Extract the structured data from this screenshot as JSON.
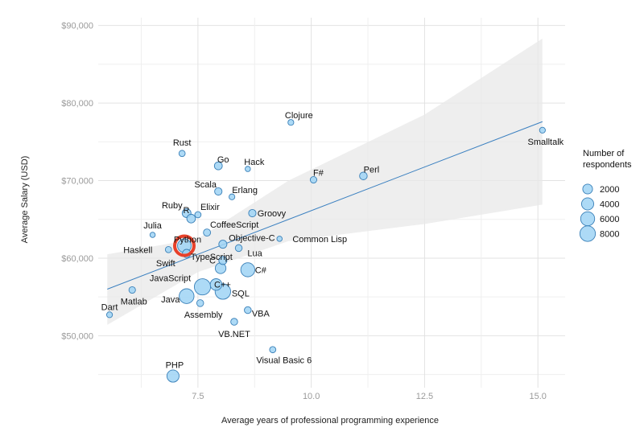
{
  "chart_data": {
    "type": "scatter",
    "xlabel": "Average years of professional programming experience",
    "ylabel": "Average Salary (USD)",
    "xlim": [
      5.3,
      15.6
    ],
    "ylim": [
      43300,
      91000
    ],
    "x_ticks": [
      7.5,
      10.0,
      12.5,
      15.0
    ],
    "x_tick_labels": [
      "7.5",
      "10.0",
      "12.5",
      "15.0"
    ],
    "y_ticks": [
      50000,
      60000,
      70000,
      80000,
      90000
    ],
    "y_tick_labels": [
      "$50,000",
      "$60,000",
      "$70,000",
      "$80,000",
      "$90,000"
    ],
    "grid": true,
    "trend_line": {
      "x": [
        5.5,
        15.1
      ],
      "y": [
        56000,
        77600
      ]
    },
    "confidence_band": {
      "upper": [
        [
          5.5,
          60500
        ],
        [
          7.5,
          62500
        ],
        [
          9.5,
          70000
        ],
        [
          12.5,
          78500
        ],
        [
          15.1,
          88300
        ]
      ],
      "lower": [
        [
          5.5,
          51400
        ],
        [
          7.5,
          58200
        ],
        [
          9.5,
          62200
        ],
        [
          12.5,
          64400
        ],
        [
          15.1,
          66900
        ]
      ]
    },
    "highlighted_point": "Python",
    "highlight_color": "#e8412a",
    "point_color": "#9fd3f5",
    "point_stroke": "#3a80b8",
    "trend_color": "#3b80c0",
    "band_color": "#e8e8e8",
    "legend": {
      "title_lines": [
        "Number of",
        "respondents"
      ],
      "position": "right",
      "entries": [
        {
          "label": "2000",
          "size": 2000
        },
        {
          "label": "4000",
          "size": 4000
        },
        {
          "label": "6000",
          "size": 6000
        },
        {
          "label": "8000",
          "size": 8000
        }
      ]
    },
    "points": [
      {
        "label": "Clojure",
        "x": 9.55,
        "y": 77500,
        "size": 200
      },
      {
        "label": "Smalltalk",
        "x": 15.1,
        "y": 76500,
        "size": 200
      },
      {
        "label": "Rust",
        "x": 7.15,
        "y": 73500,
        "size": 300
      },
      {
        "label": "Go",
        "x": 7.95,
        "y": 71900,
        "size": 900
      },
      {
        "label": "Hack",
        "x": 8.6,
        "y": 71500,
        "size": 100
      },
      {
        "label": "F#",
        "x": 10.05,
        "y": 70100,
        "size": 400
      },
      {
        "label": "Perl",
        "x": 11.15,
        "y": 70600,
        "size": 800
      },
      {
        "label": "Scala",
        "x": 7.95,
        "y": 68600,
        "size": 700
      },
      {
        "label": "Erlang",
        "x": 8.25,
        "y": 67900,
        "size": 200
      },
      {
        "label": "Ruby",
        "x": 7.25,
        "y": 65800,
        "size": 1400
      },
      {
        "label": "Elixir",
        "x": 7.5,
        "y": 65600,
        "size": 300
      },
      {
        "label": "R",
        "x": 7.35,
        "y": 65100,
        "size": 1300
      },
      {
        "label": "Groovy",
        "x": 8.7,
        "y": 65800,
        "size": 700
      },
      {
        "label": "CoffeeScript",
        "x": 7.7,
        "y": 63300,
        "size": 600
      },
      {
        "label": "Julia",
        "x": 6.5,
        "y": 63000,
        "size": 100
      },
      {
        "label": "Python",
        "x": 7.2,
        "y": 61600,
        "size": 5500
      },
      {
        "label": "Objective-C",
        "x": 8.05,
        "y": 61800,
        "size": 1000
      },
      {
        "label": "Common Lisp",
        "x": 9.3,
        "y": 62500,
        "size": 100
      },
      {
        "label": "Haskell",
        "x": 6.85,
        "y": 61100,
        "size": 300
      },
      {
        "label": "Lua",
        "x": 8.4,
        "y": 61300,
        "size": 500
      },
      {
        "label": "Swift",
        "x": 7.25,
        "y": 60600,
        "size": 1100
      },
      {
        "label": "TypeScript",
        "x": 8.05,
        "y": 59700,
        "size": 1000
      },
      {
        "label": "C#",
        "x": 8.6,
        "y": 58500,
        "size": 6000
      },
      {
        "label": "C",
        "x": 8.0,
        "y": 58700,
        "size": 2700
      },
      {
        "label": "C++",
        "x": 7.9,
        "y": 56600,
        "size": 3500
      },
      {
        "label": "JavaScript",
        "x": 7.6,
        "y": 56300,
        "size": 9000
      },
      {
        "label": "SQL",
        "x": 8.05,
        "y": 55700,
        "size": 8000
      },
      {
        "label": "Matlab",
        "x": 6.05,
        "y": 55900,
        "size": 400
      },
      {
        "label": "Java",
        "x": 7.25,
        "y": 55100,
        "size": 7000
      },
      {
        "label": "Assembly",
        "x": 7.55,
        "y": 54200,
        "size": 500
      },
      {
        "label": "VBA",
        "x": 8.6,
        "y": 53300,
        "size": 500
      },
      {
        "label": "Dart",
        "x": 5.55,
        "y": 52700,
        "size": 200
      },
      {
        "label": "VB.NET",
        "x": 8.3,
        "y": 51800,
        "size": 500
      },
      {
        "label": "Visual Basic 6",
        "x": 9.15,
        "y": 48200,
        "size": 300
      },
      {
        "label": "PHP",
        "x": 6.95,
        "y": 44800,
        "size": 4000
      }
    ]
  }
}
